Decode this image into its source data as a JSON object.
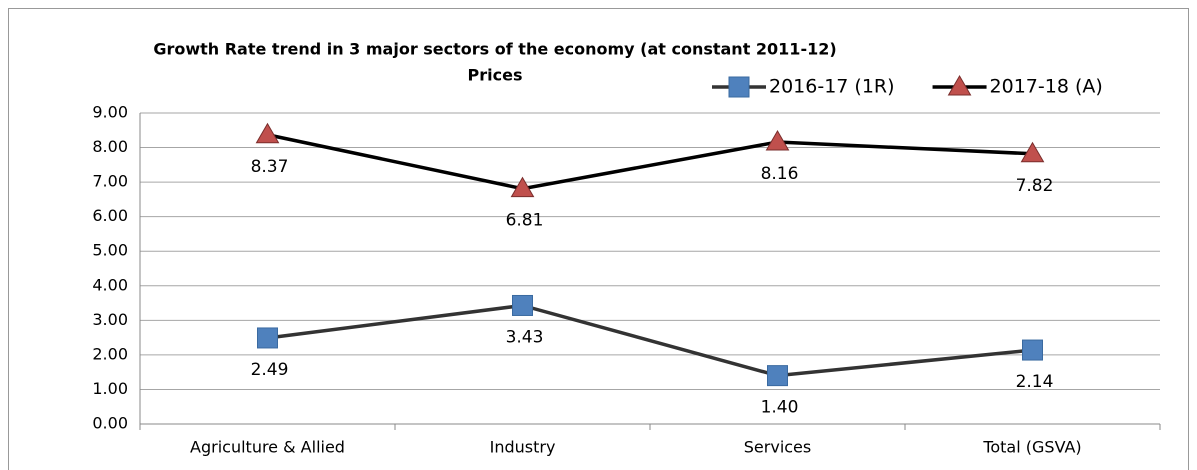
{
  "chart_data": {
    "type": "line",
    "title_lines": [
      "Growth Rate  trend in 3 major sectors of the economy (at constant 2011-12)",
      "Prices"
    ],
    "categories": [
      "Agriculture & Allied",
      "Industry",
      "Services",
      "Total (GSVA)"
    ],
    "series": [
      {
        "name": "2016-17 (1R)",
        "color": "#4f81bd",
        "line_color": "#333333",
        "marker": "square",
        "values": [
          2.49,
          3.43,
          1.4,
          2.14
        ],
        "value_labels": [
          "2.49",
          "3.43",
          "1.40",
          "2.14"
        ]
      },
      {
        "name": "2017-18 (A)",
        "color": "#c0504d",
        "line_color": "#000000",
        "marker": "triangle",
        "values": [
          8.37,
          6.81,
          8.16,
          7.82
        ],
        "value_labels": [
          "8.37",
          "6.81",
          "8.16",
          "7.82"
        ]
      }
    ],
    "ylim": [
      0,
      9
    ],
    "yticks": [
      {
        "value": 0,
        "label": "0.00"
      },
      {
        "value": 1,
        "label": "1.00"
      },
      {
        "value": 2,
        "label": "2.00"
      },
      {
        "value": 3,
        "label": "3.00"
      },
      {
        "value": 4,
        "label": "4.00"
      },
      {
        "value": 5,
        "label": "5.00"
      },
      {
        "value": 6,
        "label": "6.00"
      },
      {
        "value": 7,
        "label": "7.00"
      },
      {
        "value": 8,
        "label": "8.00"
      },
      {
        "value": 9,
        "label": "9.00"
      }
    ],
    "grid": true,
    "legend": "top-right"
  }
}
